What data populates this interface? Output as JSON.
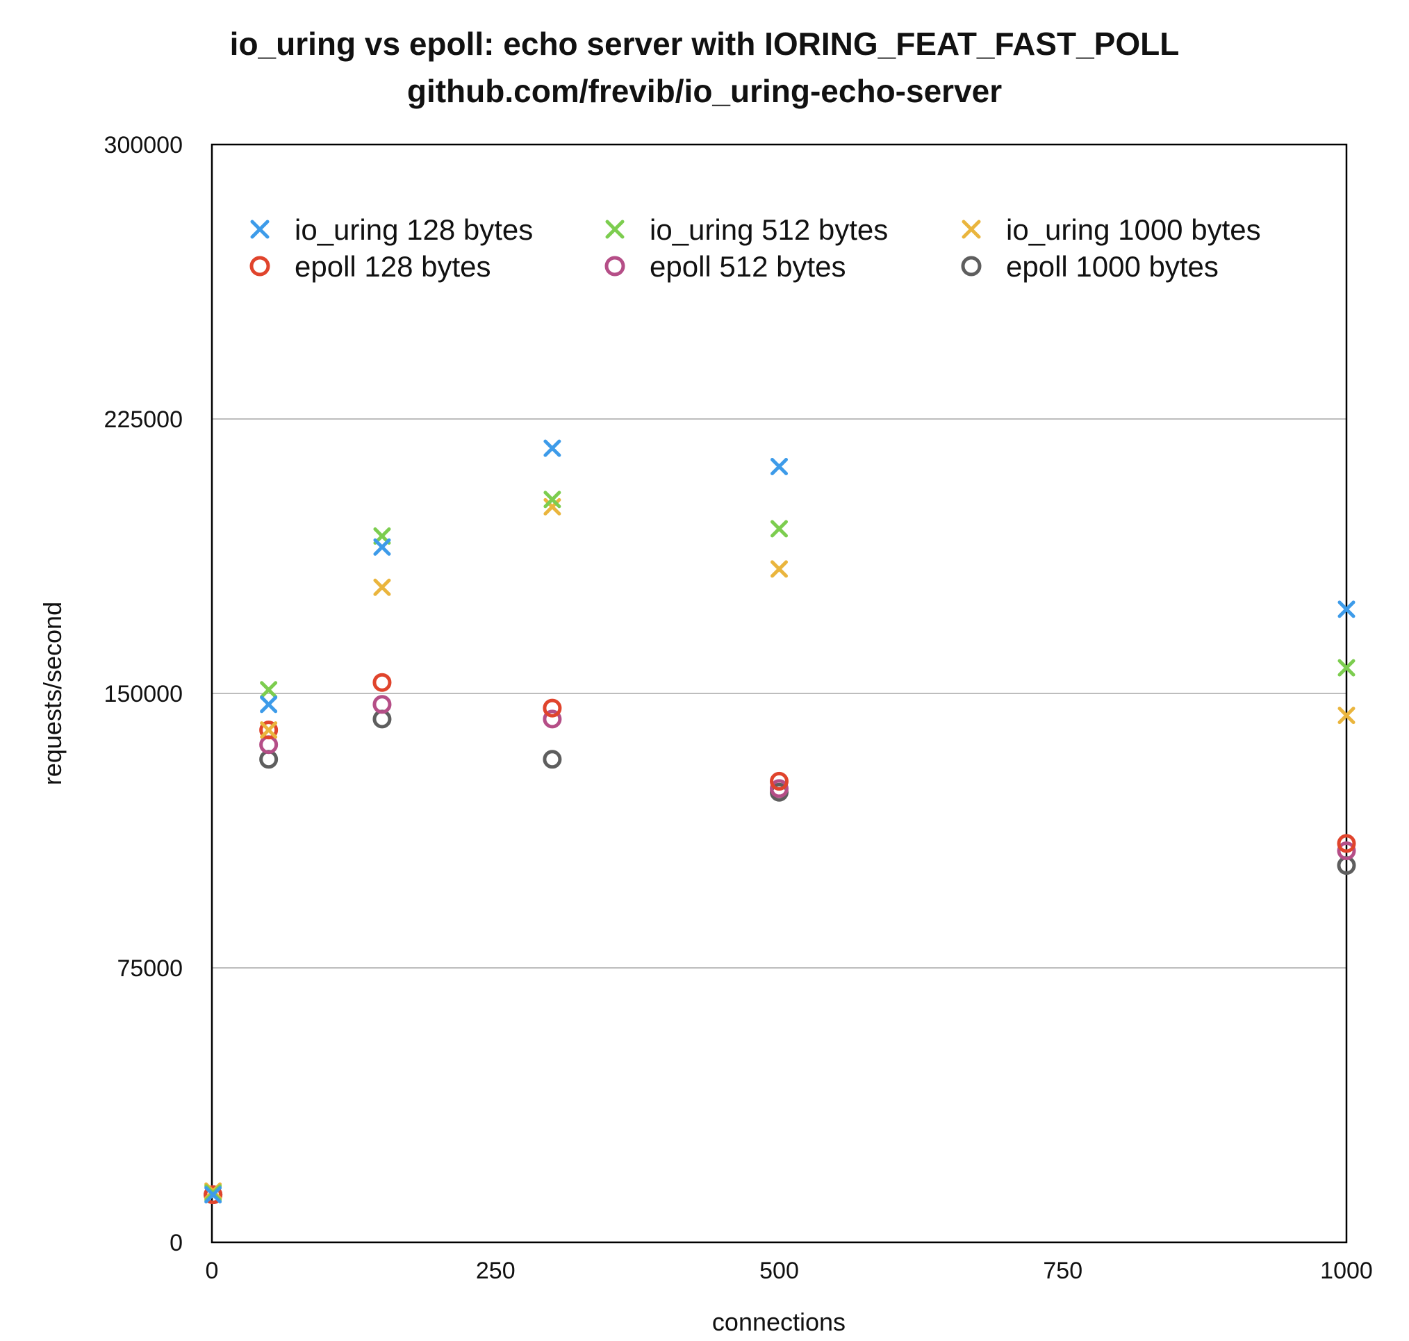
{
  "chart_data": {
    "type": "scatter",
    "title": "io_uring vs epoll: echo server with IORING_FEAT_FAST_POLL",
    "subtitle": "github.com/frevib/io_uring-echo-server",
    "xlabel": "connections",
    "ylabel": "requests/second",
    "xlim": [
      0,
      1000
    ],
    "ylim": [
      0,
      300000
    ],
    "xticks": [
      0,
      250,
      500,
      750,
      1000
    ],
    "yticks": [
      0,
      75000,
      150000,
      225000,
      300000
    ],
    "xtick_labels": [
      "0",
      "250",
      "500",
      "750",
      "1000"
    ],
    "ytick_labels": [
      "0",
      "75000",
      "150000",
      "225000",
      "300000"
    ],
    "grid": "horizontal",
    "legend_position": "top",
    "series": [
      {
        "name": "io_uring 128 bytes",
        "marker": "x",
        "color": "#3d9be9",
        "x": [
          1,
          50,
          150,
          300,
          500,
          1000
        ],
        "y": [
          13000,
          147000,
          190000,
          217000,
          212000,
          173000
        ]
      },
      {
        "name": "io_uring 512 bytes",
        "marker": "x",
        "color": "#7ccd4f",
        "x": [
          1,
          50,
          150,
          300,
          500,
          1000
        ],
        "y": [
          13500,
          151000,
          193000,
          203000,
          195000,
          157000
        ]
      },
      {
        "name": "io_uring 1000 bytes",
        "marker": "x",
        "color": "#eab53d",
        "x": [
          1,
          50,
          150,
          300,
          500,
          1000
        ],
        "y": [
          14000,
          140000,
          179000,
          201000,
          184000,
          144000
        ]
      },
      {
        "name": "epoll 128 bytes",
        "marker": "o",
        "color": "#e0442c",
        "x": [
          1,
          50,
          150,
          300,
          500,
          1000
        ],
        "y": [
          13000,
          140000,
          153000,
          146000,
          126000,
          109000
        ]
      },
      {
        "name": "epoll 512 bytes",
        "marker": "o",
        "color": "#b54e87",
        "x": [
          1,
          50,
          150,
          300,
          500,
          1000
        ],
        "y": [
          13000,
          136000,
          147000,
          143000,
          124000,
          107000
        ]
      },
      {
        "name": "epoll 1000 bytes",
        "marker": "o",
        "color": "#5e5e5e",
        "x": [
          1,
          50,
          150,
          300,
          500,
          1000
        ],
        "y": [
          13000,
          132000,
          143000,
          132000,
          123000,
          103000
        ]
      }
    ]
  }
}
